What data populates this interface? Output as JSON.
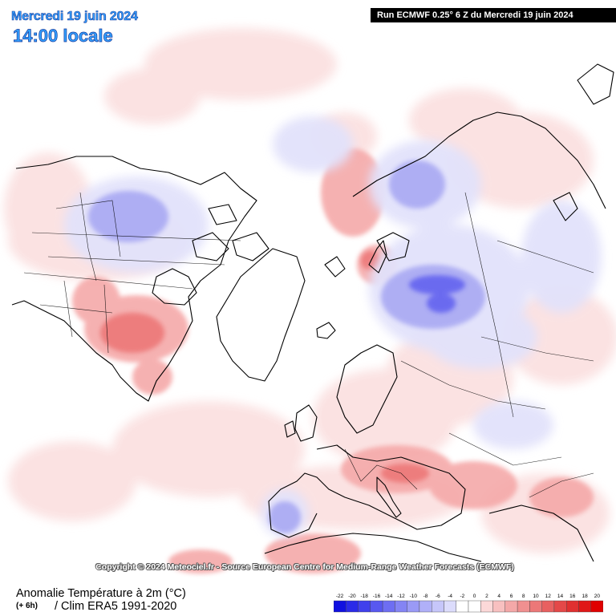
{
  "header": {
    "date": "Mercredi 19 juin 2024",
    "time": "14:00 locale",
    "run_info": "Run ECMWF 0.25° 6 Z du Mercredi 19 juin 2024"
  },
  "copyright": "Copyright © 2024 Meteociel.fr - Source European Centre for Medium-Range Weather Forecasts (ECMWF)",
  "footer": {
    "variable": "Anomalie Température à 2m (°C)",
    "lead": "(+ 6h)",
    "climatology": "/ Clim ERA5 1991-2020"
  },
  "legend": {
    "ticks": [
      "-22",
      "-20",
      "-18",
      "-16",
      "-14",
      "-12",
      "-10",
      "-8",
      "-6",
      "-4",
      "-2",
      "0",
      "2",
      "4",
      "6",
      "8",
      "10",
      "12",
      "14",
      "16",
      "18",
      "20"
    ],
    "colors": [
      "#1010e0",
      "#2a2ae8",
      "#4040ec",
      "#5858f0",
      "#6e6ef2",
      "#8484f4",
      "#9a9af6",
      "#b0b0f8",
      "#c6c6fa",
      "#dcdcfc",
      "#ffffff",
      "#ffffff",
      "#fcd8d8",
      "#f8c0c0",
      "#f4a8a8",
      "#f09090",
      "#ec7878",
      "#e86060",
      "#e44848",
      "#e03030",
      "#e01818",
      "#e00000"
    ]
  },
  "map": {
    "projection": "polar stereographic, North Pole",
    "variable_colors": {
      "warm_light": "#fbe1e1",
      "warm_mid": "#f4a8a8",
      "warm_strong": "#ec7070",
      "cold_light": "#e2e2fb",
      "cold_mid": "#a9a9f3",
      "cold_strong": "#5a5aef"
    }
  }
}
